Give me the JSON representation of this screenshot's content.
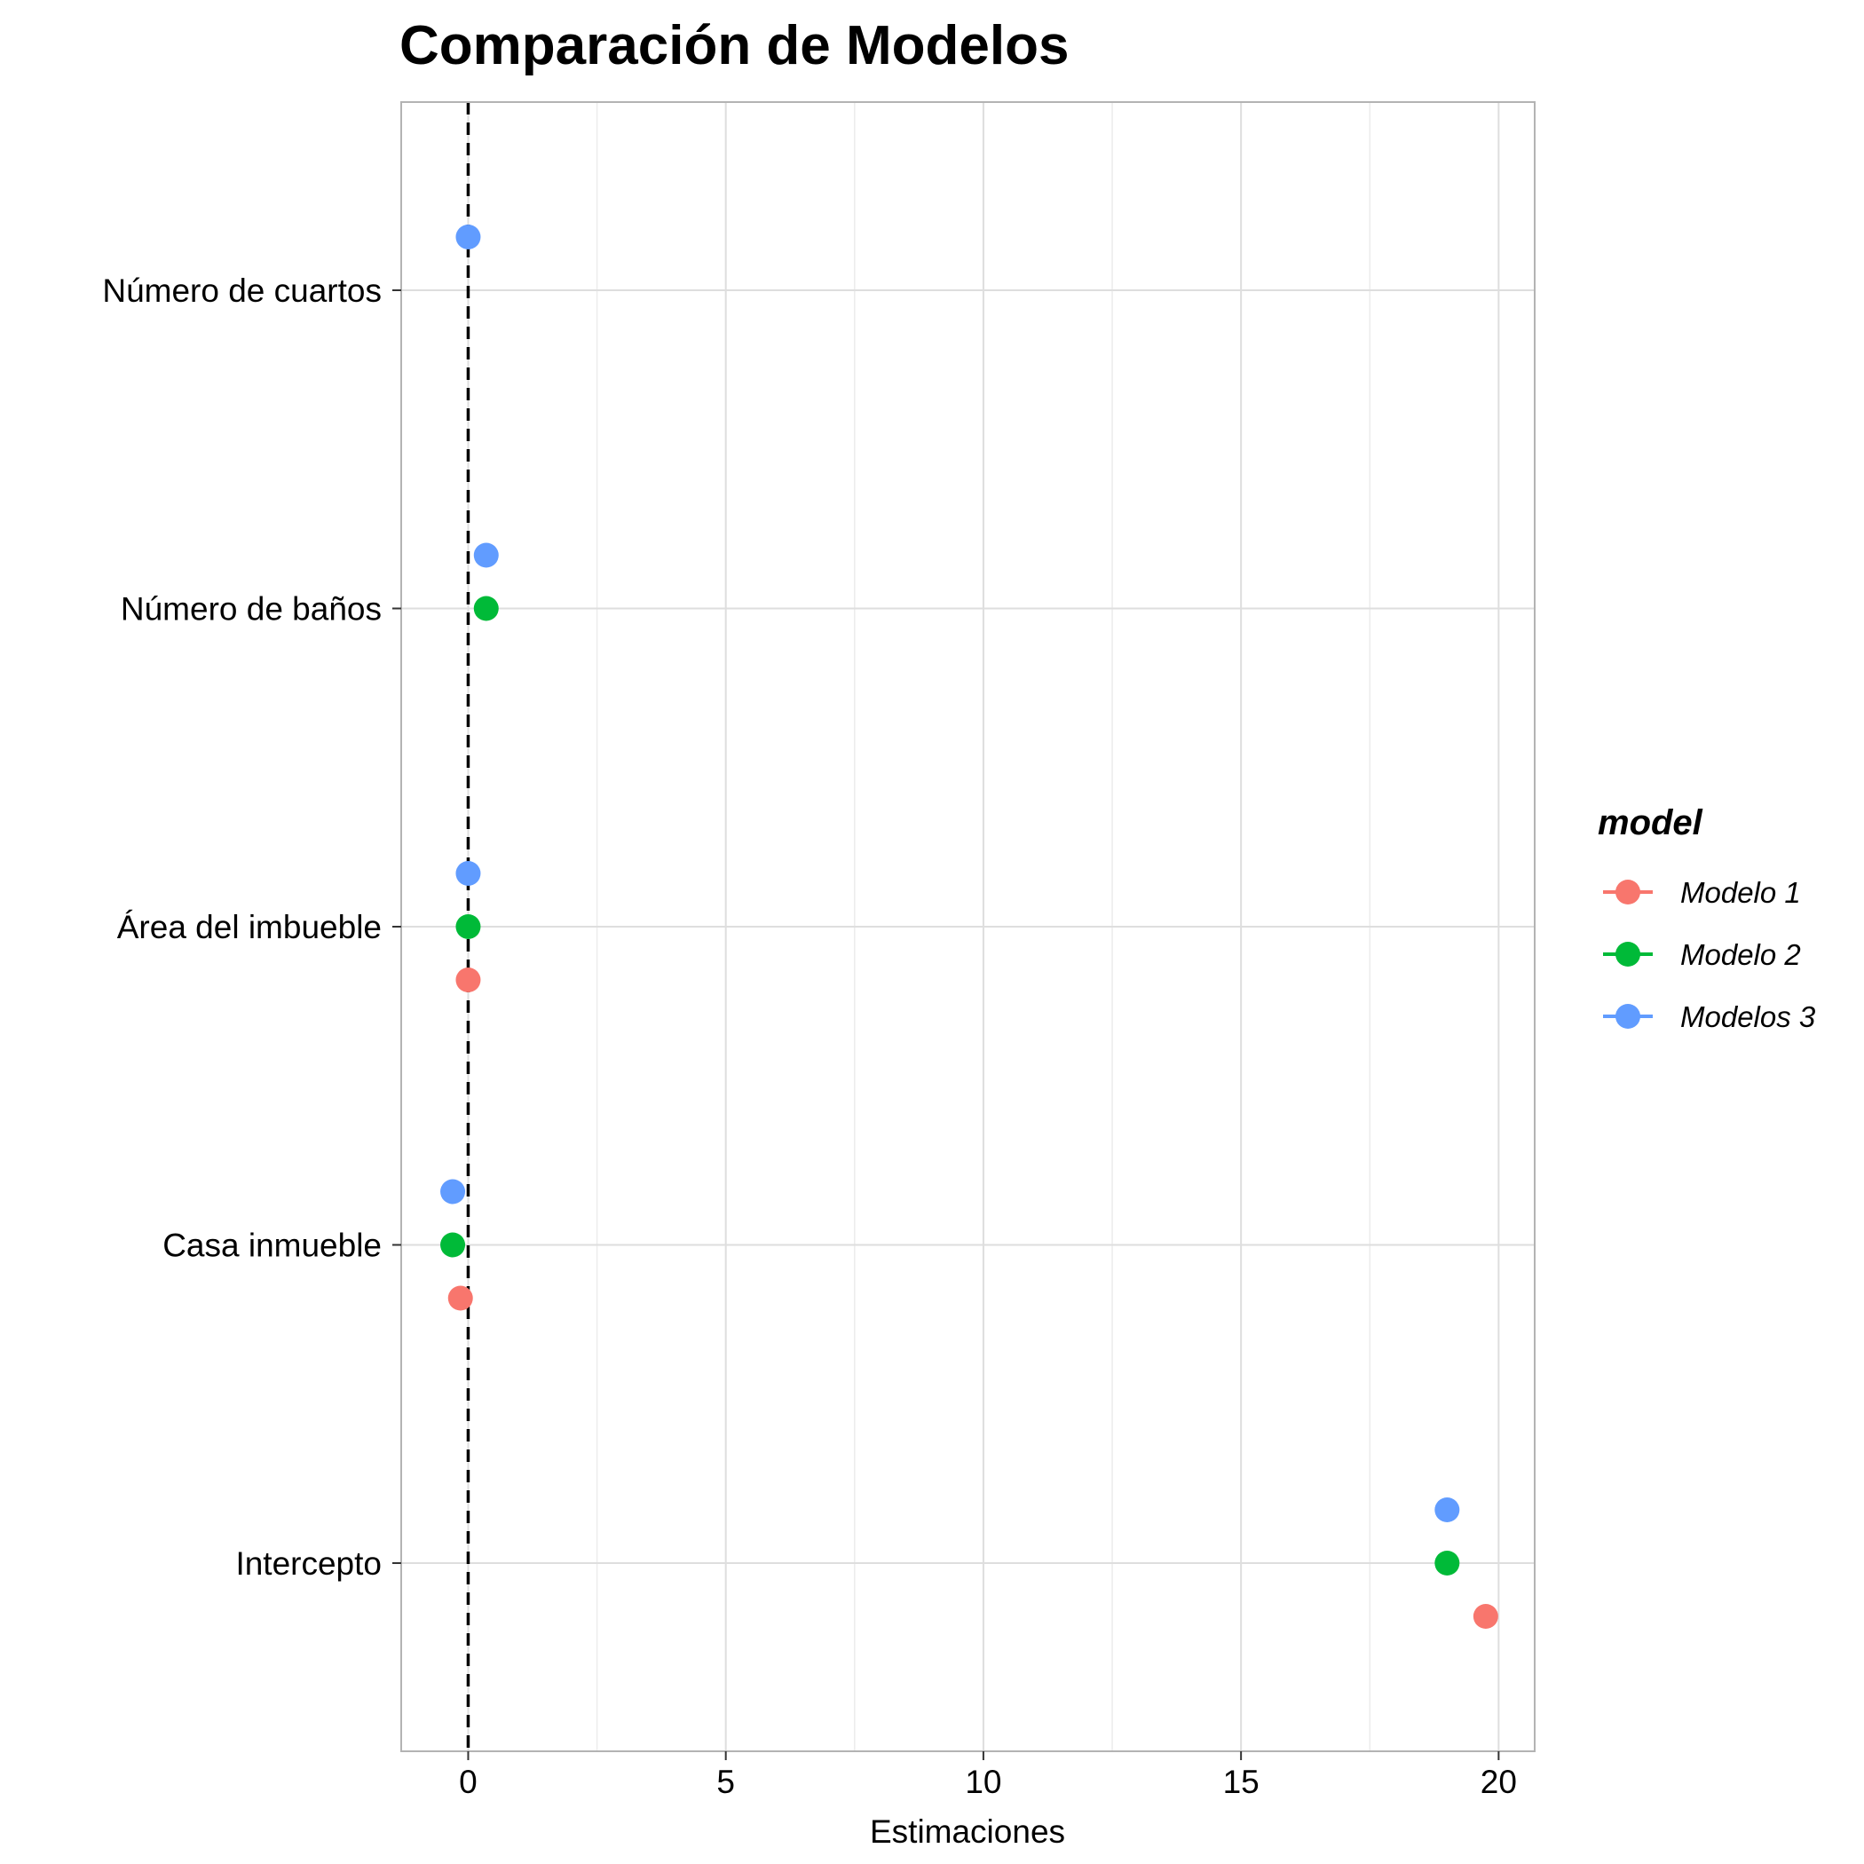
{
  "chart_data": {
    "type": "scatter",
    "title": "Comparación de Modelos",
    "xlabel": "Estimaciones",
    "ylabel": "",
    "xlim": [
      -1.3,
      20.7
    ],
    "x_ticks": [
      0,
      5,
      10,
      15,
      20
    ],
    "x_minor_ticks": [
      2.5,
      7.5,
      12.5,
      17.5
    ],
    "reference_line": {
      "x": 0,
      "style": "dashed"
    },
    "grid": true,
    "categories": [
      "Número de cuartos",
      "Número de baños",
      "Área del imbueble",
      "Casa inmueble",
      "Intercepto"
    ],
    "legend": {
      "title": "model",
      "position": "right"
    },
    "series": [
      {
        "name": "Modelo 1",
        "color": "#F8766D",
        "points": [
          {
            "category": "Área del imbueble",
            "value": 0.0
          },
          {
            "category": "Casa inmueble",
            "value": -0.15
          },
          {
            "category": "Intercepto",
            "value": 19.75
          }
        ]
      },
      {
        "name": "Modelo 2",
        "color": "#00BA38",
        "points": [
          {
            "category": "Número de baños",
            "value": 0.35
          },
          {
            "category": "Área del imbueble",
            "value": 0.0
          },
          {
            "category": "Casa inmueble",
            "value": -0.3
          },
          {
            "category": "Intercepto",
            "value": 19.0
          }
        ]
      },
      {
        "name": "Modelos 3",
        "color": "#619CFF",
        "points": [
          {
            "category": "Número de cuartos",
            "value": 0.0
          },
          {
            "category": "Número de baños",
            "value": 0.35
          },
          {
            "category": "Área del imbueble",
            "value": 0.0
          },
          {
            "category": "Casa inmueble",
            "value": -0.3
          },
          {
            "category": "Intercepto",
            "value": 19.0
          }
        ]
      }
    ]
  }
}
